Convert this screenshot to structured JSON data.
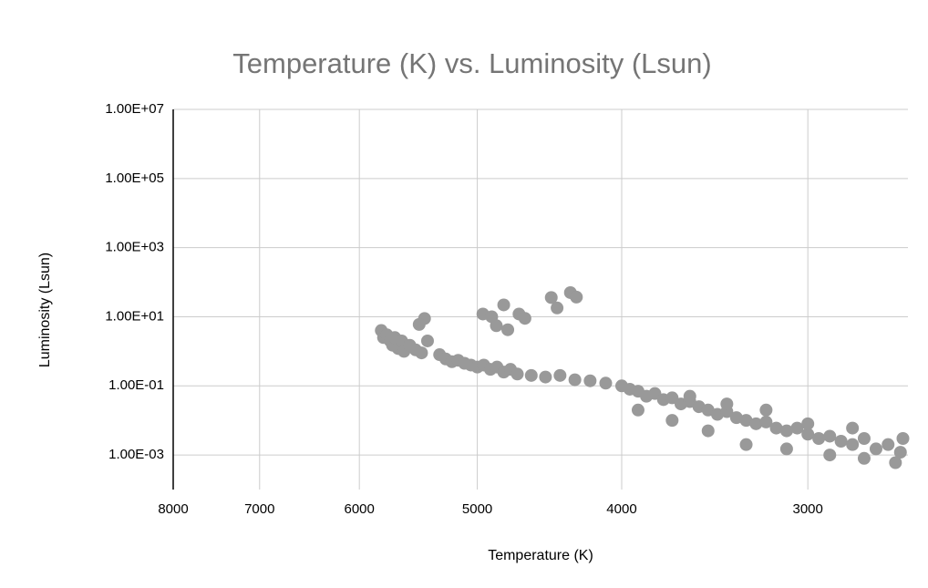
{
  "chart_data": {
    "type": "scatter",
    "title": "Temperature (K) vs. Luminosity (Lsun)",
    "x_label": "Temperature (K)",
    "y_label": "Luminosity (Lsun)",
    "color": "#999999",
    "x_scale": "log",
    "y_scale": "log",
    "x_reversed": true,
    "grid": true,
    "xlim": [
      8000,
      2570
    ],
    "xticks": [
      8000,
      7000,
      6000,
      5000,
      4000,
      3000
    ],
    "ylim": [
      0.0001,
      10000000
    ],
    "yticks": [
      {
        "value": 10000000,
        "label": "1.00E+07"
      },
      {
        "value": 100000,
        "label": "1.00E+05"
      },
      {
        "value": 1000,
        "label": "1.00E+03"
      },
      {
        "value": 10,
        "label": "1.00E+01"
      },
      {
        "value": 0.1,
        "label": "1.00E-01"
      },
      {
        "value": 0.001,
        "label": "1.00E-03"
      }
    ],
    "x": [
      5800,
      5780,
      5750,
      5720,
      5700,
      5680,
      5650,
      5620,
      5600,
      5550,
      5500,
      5450,
      5400,
      5300,
      5250,
      5200,
      5150,
      5100,
      5050,
      5000,
      4950,
      4900,
      4850,
      4800,
      4750,
      4700,
      4600,
      4500,
      4400,
      4300,
      4200,
      4100,
      4000,
      3950,
      3900,
      3850,
      3800,
      3750,
      3700,
      3650,
      3600,
      3550,
      3500,
      3450,
      3400,
      3350,
      3300,
      3250,
      3200,
      3150,
      3100,
      3050,
      3000,
      2950,
      2900,
      2850,
      2800,
      2750,
      2700,
      2650,
      2600,
      2590,
      3900,
      3700,
      3500,
      3300,
      3100,
      2900,
      2750,
      2620,
      3600,
      3400,
      3200,
      3000,
      2800,
      5425,
      5470,
      4688,
      4957,
      4800,
      4855,
      4770,
      4645,
      4460,
      4420,
      4330,
      4290,
      4890
    ],
    "values": [
      4,
      2.5,
      3,
      2,
      1.5,
      2.5,
      1.2,
      2,
      1,
      1.5,
      1.1,
      0.9,
      2,
      0.8,
      0.6,
      0.5,
      0.55,
      0.45,
      0.4,
      0.35,
      0.4,
      0.3,
      0.35,
      0.25,
      0.3,
      0.22,
      0.2,
      0.18,
      0.2,
      0.15,
      0.14,
      0.12,
      0.1,
      0.08,
      0.07,
      0.05,
      0.06,
      0.04,
      0.045,
      0.03,
      0.035,
      0.025,
      0.02,
      0.015,
      0.018,
      0.012,
      0.01,
      0.008,
      0.009,
      0.006,
      0.005,
      0.006,
      0.004,
      0.003,
      0.0035,
      0.0025,
      0.002,
      0.003,
      0.0015,
      0.002,
      0.0012,
      0.003,
      0.02,
      0.01,
      0.005,
      0.002,
      0.0015,
      0.001,
      0.0008,
      0.0006,
      0.05,
      0.03,
      0.02,
      0.008,
      0.006,
      8.9,
      6,
      12,
      12,
      22,
      5.5,
      4.2,
      9,
      36,
      18,
      50,
      37,
      10
    ]
  }
}
